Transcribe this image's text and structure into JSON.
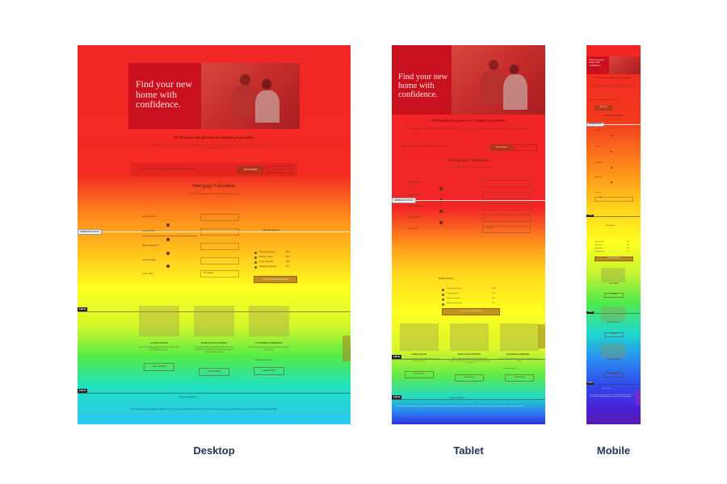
{
  "captions": {
    "desktop": "Desktop",
    "tablet": "Tablet",
    "mobile": "Mobile"
  },
  "page": {
    "hero_line1": "Find your new",
    "hero_line2": "home with",
    "hero_line3": "confidence.",
    "headline": "We'll make the process as smooth as possible.",
    "intro": "The mortgage basics, great rates and expert lending team help you manage the process with a lot of the work - getting you into your dream home even faster!",
    "apply_text": "Apply online or contact a Mortgage Specialist to get started.",
    "apply_button": "GET STARTED",
    "contact_button": "CALL CENTER",
    "calc_title": "Mortgage Calculator",
    "calc_sub": "Quickly estimate your monthly mortgage payment.",
    "fields": [
      "Annual Taxes",
      "Home Price",
      "Down Payment",
      "Interest Rate",
      "Loan Term"
    ],
    "loan_term_value": "30 YEARS",
    "payment_label": "Monthly Payment",
    "legend": [
      "Principal & Interest",
      "Property Taxes",
      "Home Insurance",
      "Mortgage Insurance"
    ],
    "legend_pct": [
      "65%",
      "20%",
      "10%",
      "5%"
    ],
    "calc_button": "APPLY FOR A MORTGAGE",
    "cards": [
      {
        "title": "CHECK RATES",
        "body": "See our mortgage options with affordable rates and programs for you.",
        "button": "GET STARTED"
      },
      {
        "title": "MORTGAGE OPTIONS",
        "body": "We've Fixed Rate, Adjustable Rate, FHA & VA Programs and First-time homebuyer options that meet your needs.",
        "button": "LEARN MORE"
      },
      {
        "title": "UPCOMING SEMINARS",
        "body": "Our seminars review the ins and outs of buying a new home.",
        "button": "LEARN MORE"
      }
    ],
    "card_date": "Saturday, June 3 ›››",
    "footer_link": "Have Questions?",
    "footer_text": "Our team of expert mortgage specialists is here to help you find the right home loan for you. Call us today or stop by a branch near you to speak with a mortgage specialist."
  },
  "fold_labels": {
    "average": "AVERAGE FOLD",
    "fold": "FOLD"
  },
  "heat_colors": [
    "#f02020",
    "#ff9f1a",
    "#ffff1e",
    "#66ee40",
    "#19d6d6",
    "#3a6bf5",
    "#4b1ce0"
  ]
}
